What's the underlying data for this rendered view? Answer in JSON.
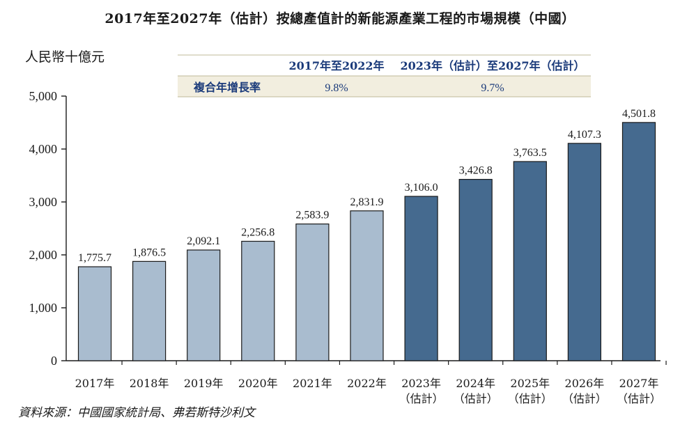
{
  "chart_data": {
    "type": "bar",
    "title": "2017年至2027年（估計）按總產值計的新能源產業工程的市場規模（中國）",
    "ylabel": "人民幣十億元",
    "xlabel": "",
    "ylim": [
      0,
      5000
    ],
    "yticks": [
      0,
      1000,
      2000,
      3000,
      4000,
      5000
    ],
    "ytick_labels": [
      "0",
      "1,000",
      "2,000",
      "3,000",
      "4,000",
      "5,000"
    ],
    "categories": [
      [
        "2017年"
      ],
      [
        "2018年"
      ],
      [
        "2019年"
      ],
      [
        "2020年"
      ],
      [
        "2021年"
      ],
      [
        "2022年"
      ],
      [
        "2023年",
        "（估計）"
      ],
      [
        "2024年",
        "（估計）"
      ],
      [
        "2025年",
        "（估計）"
      ],
      [
        "2026年",
        "（估計）"
      ],
      [
        "2027年",
        "（估計）"
      ]
    ],
    "values": [
      1775.7,
      1876.5,
      2092.1,
      2256.8,
      2583.9,
      2831.9,
      3106.0,
      3426.8,
      3763.5,
      4107.3,
      4501.8
    ],
    "value_labels": [
      "1,775.7",
      "1,876.5",
      "2,092.1",
      "2,256.8",
      "2,583.9",
      "2,831.9",
      "3,106.0",
      "3,426.8",
      "3,763.5",
      "4,107.3",
      "4,501.8"
    ],
    "colors": {
      "historical": "#a9bccf",
      "forecast": "#456a8f",
      "table_bg": "#f2eedf",
      "table_text": "#1a3a7a"
    },
    "historical_count": 6,
    "grid": false,
    "cagr_table": {
      "headers": [
        "2017年至2022年",
        "2023年（估計）至2027年（估計）"
      ],
      "row_label": "複合年增長率",
      "values": [
        "9.8%",
        "9.7%"
      ]
    }
  },
  "source": "資料來源：中國國家統計局、弗若斯特沙利文"
}
